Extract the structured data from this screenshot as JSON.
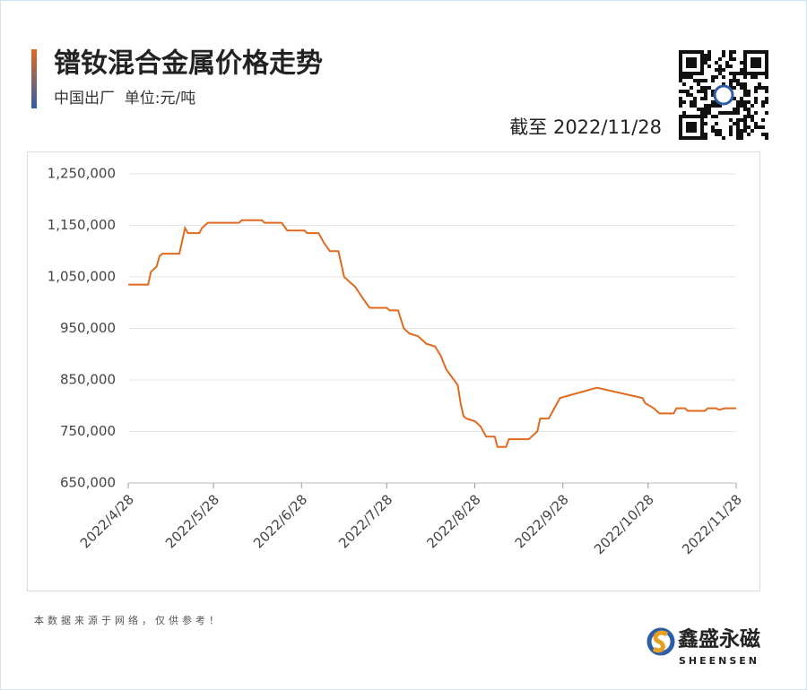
{
  "chart_data": {
    "type": "line",
    "title": "镨钕混合金属价格走势",
    "subtitle": "中国出厂  单位:元/吨",
    "as_of": "截至 2022/11/28",
    "source_note": "本数据来源于网络，仅供参考！",
    "brand": "鑫盛永磁",
    "brand_en": "SHEENSEN",
    "x": [
      "2022/4/28",
      "2022/5/5",
      "2022/5/6",
      "2022/5/7",
      "2022/5/8",
      "2022/5/9",
      "2022/5/10",
      "2022/5/16",
      "2022/5/18",
      "2022/5/19",
      "2022/5/23",
      "2022/5/24",
      "2022/5/26",
      "2022/6/6",
      "2022/6/7",
      "2022/6/14",
      "2022/6/15",
      "2022/6/21",
      "2022/6/23",
      "2022/6/29",
      "2022/6/30",
      "2022/7/4",
      "2022/7/6",
      "2022/7/8",
      "2022/7/11",
      "2022/7/13",
      "2022/7/17",
      "2022/7/20",
      "2022/7/22",
      "2022/7/28",
      "2022/7/29",
      "2022/8/1",
      "2022/8/3",
      "2022/8/5",
      "2022/8/8",
      "2022/8/10",
      "2022/8/11",
      "2022/8/14",
      "2022/8/16",
      "2022/8/18",
      "2022/8/22",
      "2022/8/23",
      "2022/8/24",
      "2022/8/25",
      "2022/8/28",
      "2022/8/30",
      "2022/9/1",
      "2022/9/4",
      "2022/9/5",
      "2022/9/8",
      "2022/9/9",
      "2022/9/16",
      "2022/9/19",
      "2022/9/20",
      "2022/9/23",
      "2022/9/25",
      "2022/9/27",
      "2022/10/10",
      "2022/10/26",
      "2022/10/27",
      "2022/10/30",
      "2022/11/1",
      "2022/11/6",
      "2022/11/7",
      "2022/11/10",
      "2022/11/11",
      "2022/11/17",
      "2022/11/18",
      "2022/11/21",
      "2022/11/22",
      "2022/11/24",
      "2022/11/28"
    ],
    "series": [
      {
        "name": "镨钕混合金属",
        "color": "#e06b1f",
        "values": [
          1035000,
          1035000,
          1060000,
          1065000,
          1070000,
          1090000,
          1095000,
          1095000,
          1145000,
          1135000,
          1135000,
          1145000,
          1155000,
          1155000,
          1160000,
          1160000,
          1155000,
          1155000,
          1140000,
          1140000,
          1135000,
          1135000,
          1115000,
          1100000,
          1100000,
          1050000,
          1030000,
          1005000,
          990000,
          990000,
          985000,
          985000,
          950000,
          940000,
          935000,
          925000,
          920000,
          915000,
          897000,
          870000,
          840000,
          805000,
          780000,
          775000,
          770000,
          760000,
          740000,
          740000,
          720000,
          720000,
          735000,
          735000,
          750000,
          775000,
          775000,
          795000,
          815000,
          835000,
          815000,
          805000,
          795000,
          785000,
          785000,
          795000,
          795000,
          790000,
          790000,
          795000,
          795000,
          792000,
          795000,
          795000
        ]
      }
    ],
    "xlim": [
      "2022/4/28",
      "2022/11/28"
    ],
    "xticks": [
      "2022/4/28",
      "2022/5/28",
      "2022/6/28",
      "2022/7/28",
      "2022/8/28",
      "2022/9/28",
      "2022/10/28",
      "2022/11/28"
    ],
    "ylim": [
      650000,
      1250000
    ],
    "yticks": [
      {
        "value": 650000,
        "label": "650,000"
      },
      {
        "value": 750000,
        "label": "750,000"
      },
      {
        "value": 850000,
        "label": "850,000"
      },
      {
        "value": 950000,
        "label": "950,000"
      },
      {
        "value": 1050000,
        "label": "1,050,000"
      },
      {
        "value": 1150000,
        "label": "1,150,000"
      },
      {
        "value": 1250000,
        "label": "1,250,000"
      }
    ],
    "grid": true
  }
}
